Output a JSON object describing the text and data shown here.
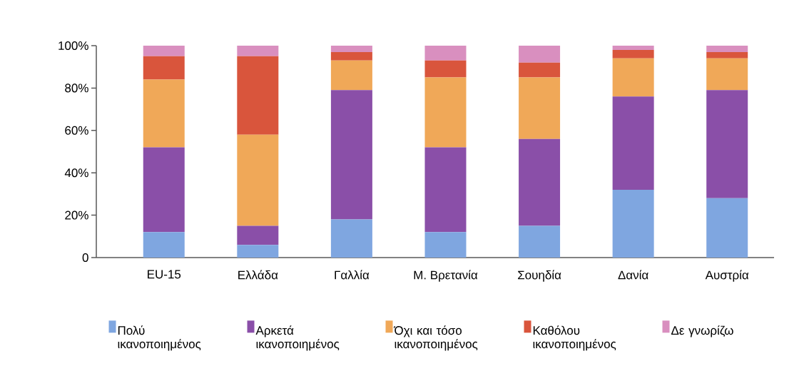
{
  "chart_data": {
    "type": "bar",
    "stacked": true,
    "categories": [
      "EU-15",
      "Ελλάδα",
      "Γαλλία",
      "Μ. Βρετανία",
      "Σουηδία",
      "Δανία",
      "Αυστρία"
    ],
    "series": [
      {
        "name": "Πολύ ικανοποιημένος",
        "color": "#7fa6e0",
        "values": [
          12,
          6,
          18,
          12,
          15,
          32,
          28
        ]
      },
      {
        "name": "Αρκετά ικανοποιημένος",
        "color": "#8a4fa8",
        "values": [
          40,
          9,
          61,
          40,
          41,
          44,
          51
        ]
      },
      {
        "name": "Όχι και τόσο ικανοποιημένος",
        "color": "#f0a858",
        "values": [
          32,
          43,
          14,
          33,
          29,
          18,
          15
        ]
      },
      {
        "name": "Καθόλου ικανοποιημένος",
        "color": "#d9553c",
        "values": [
          11,
          37,
          4,
          8,
          7,
          4,
          3
        ]
      },
      {
        "name": "Δε γνωρίζω",
        "color": "#d98fbf",
        "values": [
          5,
          5,
          3,
          7,
          8,
          2,
          3
        ]
      }
    ],
    "ylim": [
      0,
      100
    ],
    "yticks": [
      0,
      {
        "value": 20,
        "label": "20%"
      },
      {
        "value": 40,
        "label": "40%"
      },
      {
        "value": 60,
        "label": "60%"
      },
      {
        "value": 80,
        "label": "80%"
      },
      {
        "value": 100,
        "label": "100%"
      }
    ],
    "grid": false,
    "legend": "bottom"
  }
}
